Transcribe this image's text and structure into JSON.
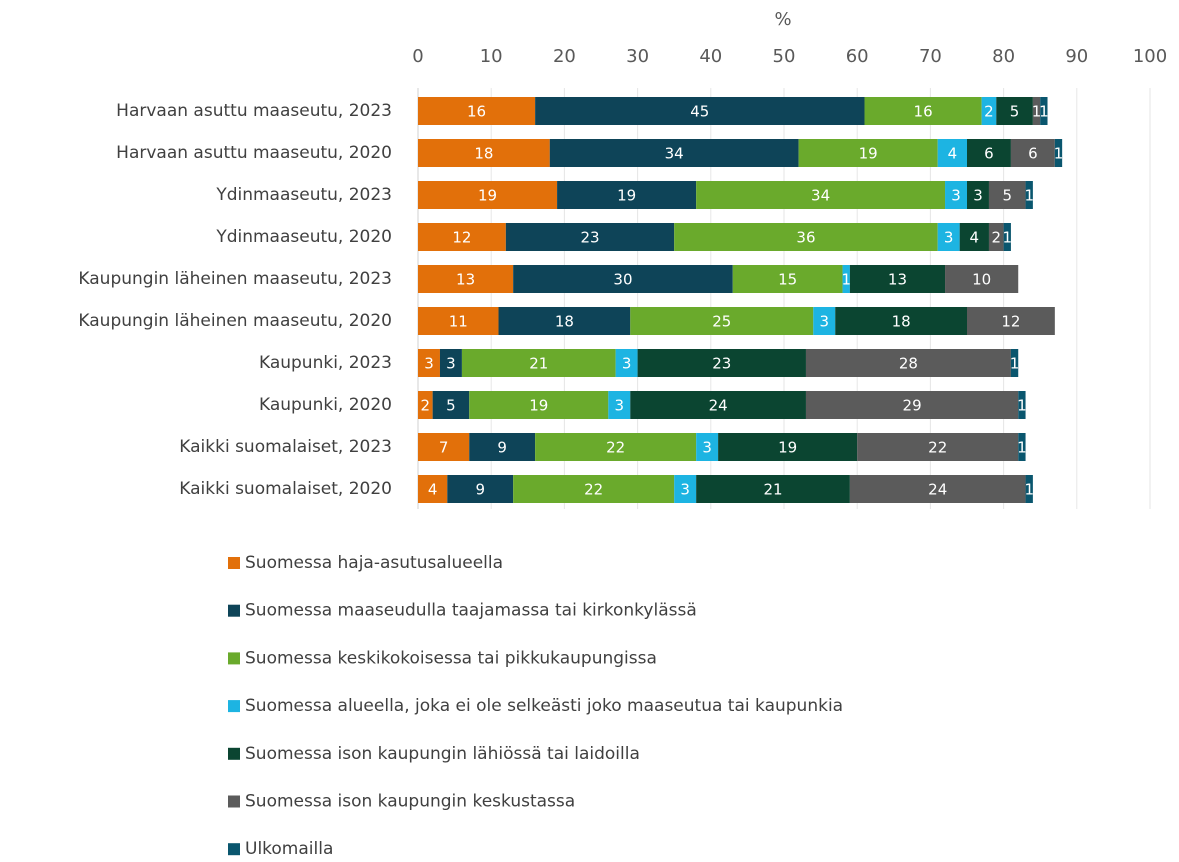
{
  "chart_data": {
    "type": "bar",
    "orientation": "horizontal",
    "stacked": true,
    "xlabel": "%",
    "categories": [
      "Harvaan asuttu maaseutu, 2023",
      "Harvaan asuttu maaseutu, 2020",
      "Ydinmaaseutu, 2023",
      "Ydinmaaseutu, 2020",
      "Kaupungin läheinen maaseutu, 2023",
      "Kaupungin läheinen maaseutu, 2020",
      "Kaupunki, 2023",
      "Kaupunki, 2020",
      "Kaikki suomalaiset, 2023",
      "Kaikki suomalaiset, 2020"
    ],
    "series": [
      {
        "name": "Suomessa haja-asutusalueella",
        "color": "#e2700a",
        "values": [
          16,
          18,
          19,
          12,
          13,
          11,
          3,
          2,
          7,
          4
        ]
      },
      {
        "name": "Suomessa maaseudulla taajamassa tai kirkonkylässä",
        "color": "#0e4458",
        "values": [
          45,
          34,
          19,
          23,
          30,
          18,
          3,
          5,
          9,
          9
        ]
      },
      {
        "name": "Suomessa keskikokoisessa tai pikkukaupungissa",
        "color": "#6aaa2c",
        "values": [
          16,
          19,
          34,
          36,
          15,
          25,
          21,
          19,
          22,
          22
        ]
      },
      {
        "name": "Suomessa alueella, joka ei ole selkeästi joko maaseutua tai kaupunkia",
        "color": "#1db4e2",
        "values": [
          2,
          4,
          3,
          3,
          1,
          3,
          3,
          3,
          3,
          3
        ]
      },
      {
        "name": "Suomessa ison kaupungin lähiössä tai laidoilla",
        "color": "#0b4531",
        "values": [
          5,
          6,
          3,
          4,
          13,
          18,
          23,
          24,
          19,
          21
        ]
      },
      {
        "name": "Suomessa ison kaupungin keskustassa",
        "color": "#5b5b5b",
        "values": [
          1,
          6,
          5,
          2,
          10,
          12,
          28,
          29,
          22,
          24
        ]
      },
      {
        "name": "Ulkomailla",
        "color": "#0a566e",
        "values": [
          1,
          1,
          1,
          1,
          null,
          null,
          1,
          1,
          1,
          1
        ]
      }
    ],
    "xlim": [
      0,
      100
    ],
    "xticks": [
      0,
      10,
      20,
      30,
      40,
      50,
      60,
      70,
      80,
      90,
      100
    ],
    "grid": true,
    "legend": "bottom"
  }
}
